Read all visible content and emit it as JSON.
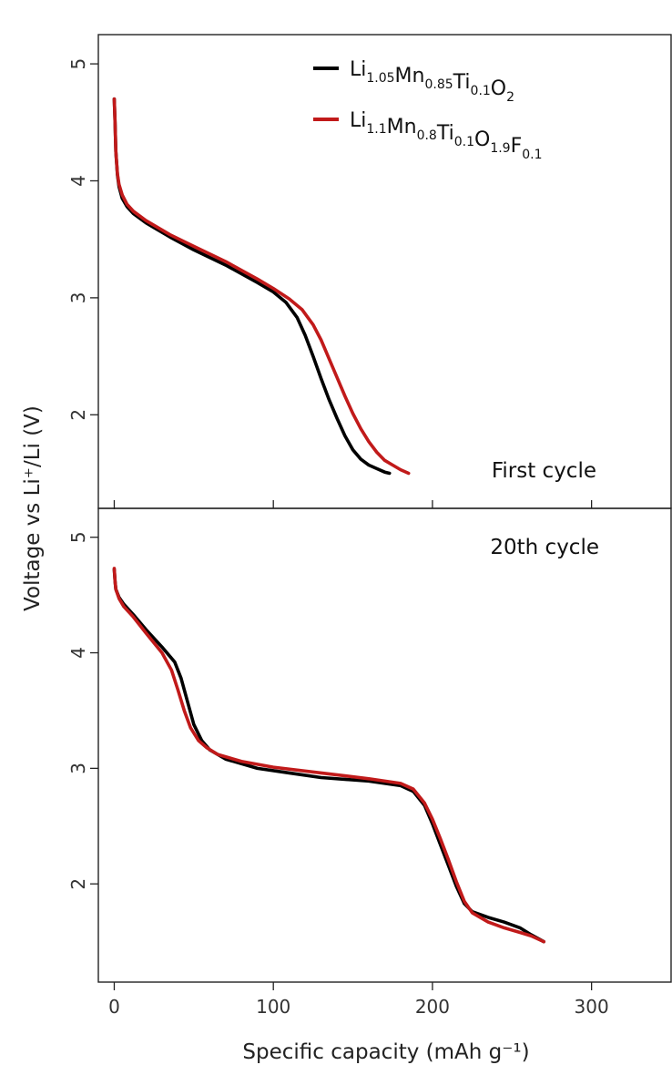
{
  "chart_data": [
    {
      "panel": "top",
      "type": "line",
      "annotation": "First cycle",
      "xlim": [
        -10,
        350
      ],
      "ylim": [
        1.2,
        5.25
      ],
      "yticks": [
        2,
        3,
        4,
        5
      ],
      "series": [
        {
          "name": "Li1.05Mn0.85Ti0.1O2",
          "color": "#000000",
          "x": [
            0,
            0.5,
            1,
            2,
            3,
            5,
            8,
            12,
            20,
            35,
            50,
            70,
            90,
            100,
            108,
            115,
            120,
            125,
            130,
            135,
            140,
            145,
            150,
            155,
            160,
            165,
            170,
            173
          ],
          "y": [
            4.7,
            4.5,
            4.25,
            4.05,
            3.95,
            3.85,
            3.78,
            3.72,
            3.64,
            3.52,
            3.41,
            3.28,
            3.13,
            3.05,
            2.96,
            2.83,
            2.68,
            2.5,
            2.31,
            2.13,
            1.97,
            1.82,
            1.7,
            1.62,
            1.57,
            1.54,
            1.51,
            1.5
          ]
        },
        {
          "name": "Li1.1Mn0.8Ti0.1O1.9F0.1",
          "color": "#c11a1a",
          "x": [
            0,
            0.5,
            1,
            2,
            3,
            5,
            8,
            12,
            20,
            35,
            50,
            70,
            90,
            100,
            110,
            118,
            125,
            130,
            135,
            140,
            145,
            150,
            155,
            160,
            165,
            170,
            175,
            180,
            185
          ],
          "y": [
            4.7,
            4.5,
            4.25,
            4.06,
            3.97,
            3.88,
            3.8,
            3.74,
            3.66,
            3.54,
            3.44,
            3.31,
            3.16,
            3.08,
            2.99,
            2.9,
            2.77,
            2.64,
            2.48,
            2.32,
            2.16,
            2.01,
            1.88,
            1.77,
            1.68,
            1.61,
            1.57,
            1.53,
            1.5
          ]
        }
      ]
    },
    {
      "panel": "bottom",
      "type": "line",
      "annotation": "20th cycle",
      "xlim": [
        -10,
        350
      ],
      "ylim": [
        1.15,
        5.25
      ],
      "yticks": [
        2,
        3,
        4,
        5
      ],
      "series": [
        {
          "name": "Li1.05Mn0.85Ti0.1O2",
          "color": "#000000",
          "x": [
            0,
            0.5,
            1,
            3,
            6,
            12,
            20,
            30,
            38,
            42,
            46,
            50,
            55,
            60,
            70,
            90,
            110,
            130,
            160,
            180,
            188,
            195,
            200,
            205,
            210,
            215,
            220,
            225,
            235,
            245,
            255,
            262,
            270
          ],
          "y": [
            4.72,
            4.62,
            4.55,
            4.48,
            4.42,
            4.33,
            4.2,
            4.05,
            3.92,
            3.78,
            3.58,
            3.38,
            3.24,
            3.16,
            3.08,
            3.0,
            2.96,
            2.92,
            2.89,
            2.85,
            2.8,
            2.68,
            2.52,
            2.34,
            2.16,
            1.98,
            1.83,
            1.76,
            1.71,
            1.67,
            1.62,
            1.56,
            1.5
          ]
        },
        {
          "name": "Li1.1Mn0.8Ti0.1O1.9F0.1",
          "color": "#c11a1a",
          "x": [
            0,
            0.5,
            1,
            3,
            6,
            12,
            20,
            30,
            36,
            40,
            44,
            48,
            53,
            58,
            65,
            80,
            100,
            130,
            160,
            180,
            188,
            195,
            200,
            205,
            210,
            215,
            220,
            225,
            235,
            245,
            255,
            262,
            270
          ],
          "y": [
            4.73,
            4.62,
            4.55,
            4.47,
            4.4,
            4.31,
            4.17,
            4.0,
            3.85,
            3.68,
            3.5,
            3.35,
            3.24,
            3.18,
            3.12,
            3.06,
            3.01,
            2.96,
            2.91,
            2.87,
            2.82,
            2.7,
            2.56,
            2.39,
            2.21,
            2.02,
            1.85,
            1.75,
            1.67,
            1.62,
            1.58,
            1.55,
            1.5
          ]
        }
      ]
    }
  ],
  "axes": {
    "xlabel": "Specific capacity (mAh g⁻¹)",
    "ylabel": "Voltage vs Li⁺/Li (V)",
    "xticks": [
      0,
      100,
      200,
      300
    ]
  },
  "legend": {
    "placement": "top-right of top panel",
    "entries": [
      {
        "color": "#000000",
        "parts": [
          [
            "Li",
            ""
          ],
          [
            "1.05",
            "sub"
          ],
          [
            "Mn",
            ""
          ],
          [
            "0.85",
            "sub"
          ],
          [
            "Ti",
            ""
          ],
          [
            "0.1",
            "sub"
          ],
          [
            "O",
            ""
          ],
          [
            "2",
            "sub"
          ]
        ]
      },
      {
        "color": "#c11a1a",
        "parts": [
          [
            "Li",
            ""
          ],
          [
            "1.1",
            "sub"
          ],
          [
            "Mn",
            ""
          ],
          [
            "0.8",
            "sub"
          ],
          [
            "Ti",
            ""
          ],
          [
            "0.1",
            "sub"
          ],
          [
            "O",
            ""
          ],
          [
            "1.9",
            "sub"
          ],
          [
            "F",
            ""
          ],
          [
            "0.1",
            "sub"
          ]
        ]
      }
    ]
  }
}
